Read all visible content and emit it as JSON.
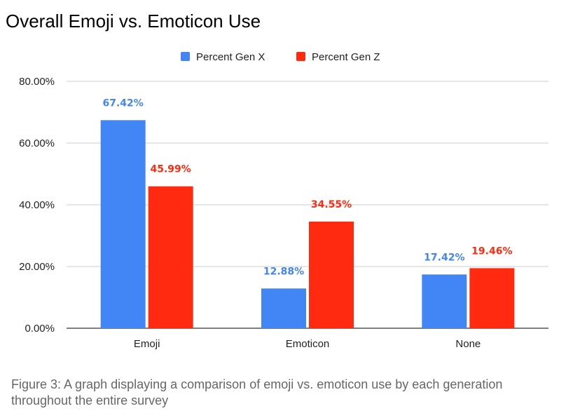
{
  "chart_data": {
    "type": "bar",
    "title": "Overall Emoji vs. Emoticon Use",
    "categories": [
      "Emoji",
      "Emoticon",
      "None"
    ],
    "series": [
      {
        "name": "Percent Gen X",
        "values": [
          67.42,
          12.88,
          17.42
        ],
        "labels": [
          "67.42%",
          "12.88%",
          "17.42%"
        ],
        "color": "#4285F4"
      },
      {
        "name": "Percent Gen Z",
        "values": [
          45.99,
          34.55,
          19.46
        ],
        "labels": [
          "45.99%",
          "34.55%",
          "19.46%"
        ],
        "color": "#FF2A0F"
      }
    ],
    "ylim": [
      0,
      80
    ],
    "yticks": [
      0,
      20,
      40,
      60,
      80
    ],
    "ytick_labels": [
      "0.00%",
      "20.00%",
      "40.00%",
      "60.00%",
      "80.00%"
    ],
    "xlabel": "",
    "ylabel": "",
    "grid": true,
    "legend_position": "top-center"
  },
  "caption": "Figure 3: A graph displaying a comparison of emoji vs. emoticon use by each generation throughout the entire survey"
}
